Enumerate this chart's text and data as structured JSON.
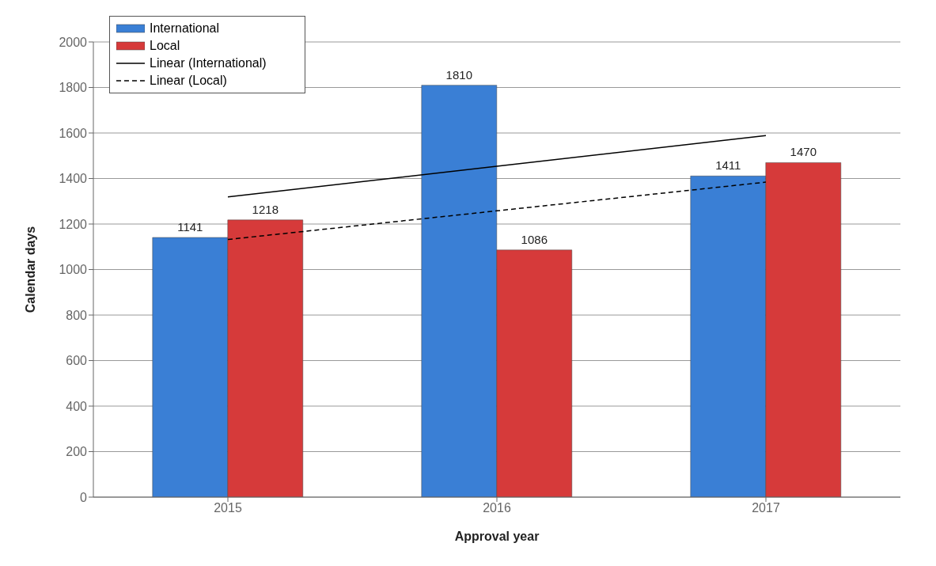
{
  "chart_data": {
    "type": "bar",
    "xlabel": "Approval year",
    "ylabel": "Calendar days",
    "categories": [
      "2015",
      "2016",
      "2017"
    ],
    "series": [
      {
        "name": "International",
        "color": "#3a7fd5",
        "values": [
          1141,
          1810,
          1411
        ],
        "value_labels": [
          "1141",
          "1810",
          "1411"
        ]
      },
      {
        "name": "Local",
        "color": "#d63a3a",
        "values": [
          1218,
          1086,
          1470
        ],
        "value_labels": [
          "1218",
          "1086",
          "1470"
        ]
      },
      {
        "name": "Linear (International)",
        "type": "line",
        "color": "#000000",
        "line_style": "solid",
        "values": [
          1319,
          1454,
          1589
        ]
      },
      {
        "name": "Linear (Local)",
        "type": "line",
        "color": "#000000",
        "line_style": "dashed",
        "values": [
          1132,
          1258,
          1384
        ]
      }
    ],
    "ylim": [
      0,
      2000
    ],
    "yticks": [
      0,
      200,
      400,
      600,
      800,
      1000,
      1200,
      1400,
      1600,
      1800,
      2000
    ],
    "grid": "y",
    "legend": "top left",
    "marker": "none"
  }
}
